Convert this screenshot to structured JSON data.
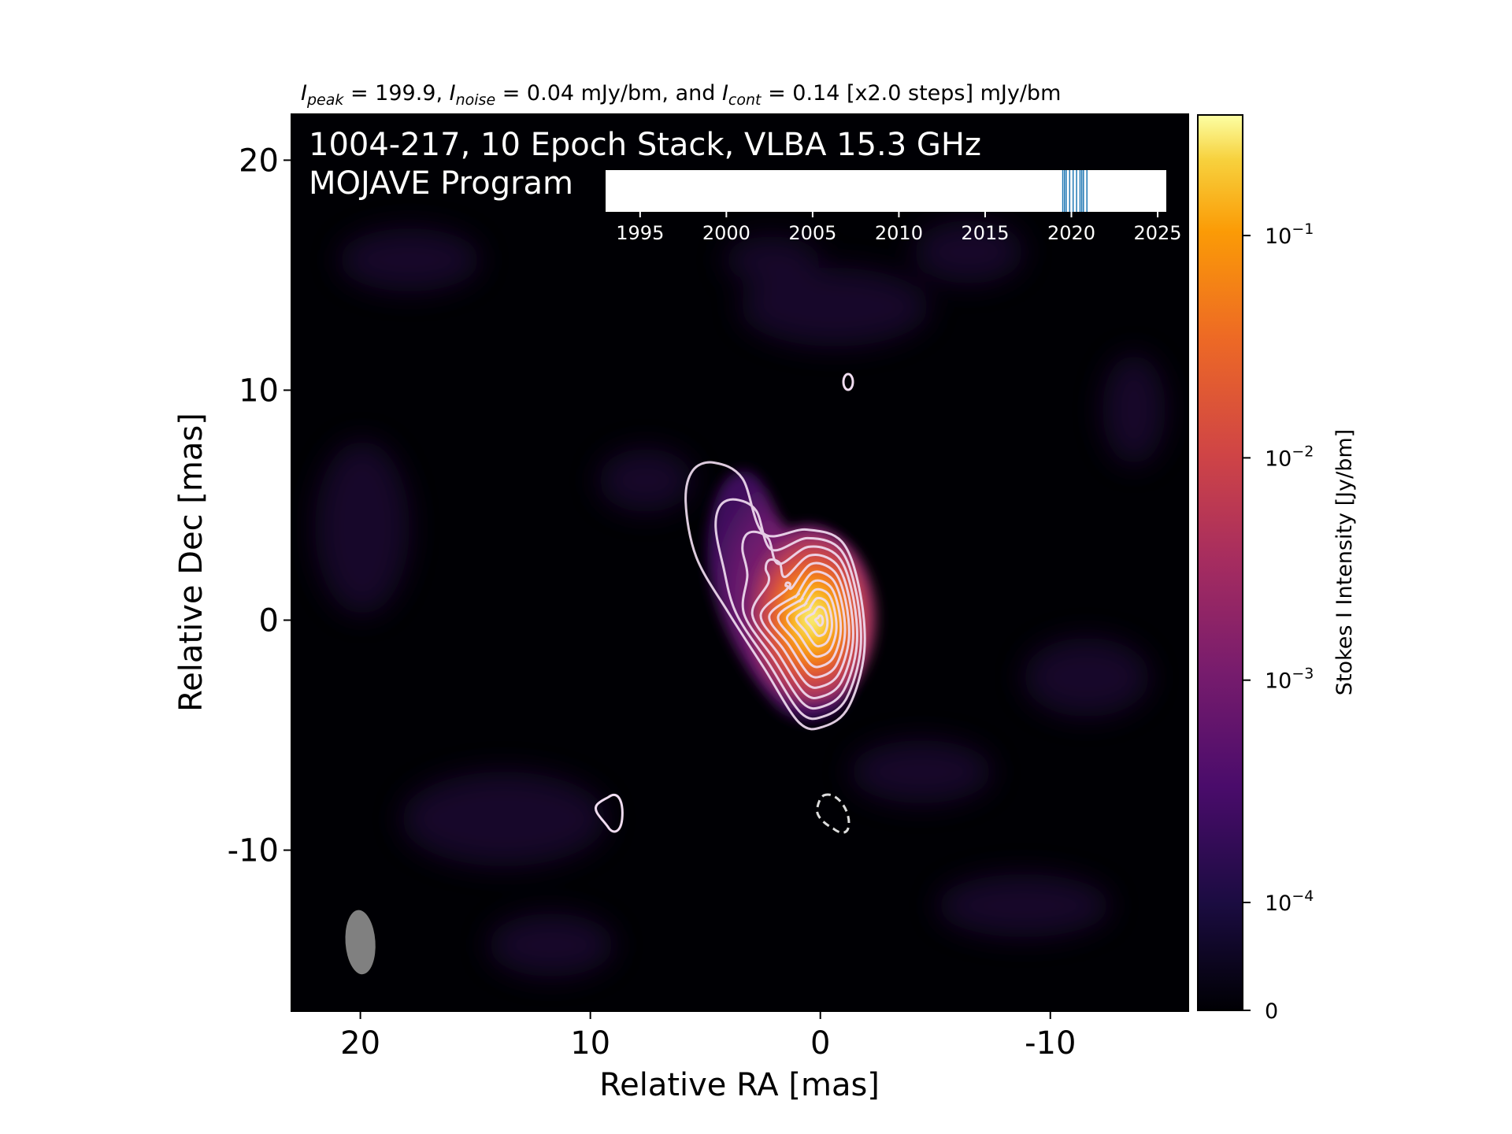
{
  "chart_data": {
    "type": "heatmap",
    "title_parts": {
      "i_peak_symbol": "I",
      "i_peak_sub": "peak",
      "i_peak_value": " = 199.9, ",
      "i_noise_symbol": "I",
      "i_noise_sub": "noise",
      "i_noise_value": " = 0.04 mJy/bm, and ",
      "i_cont_symbol": "I",
      "i_cont_sub": "cont",
      "i_cont_value": " = 0.14 [x2.0 steps] mJy/bm"
    },
    "annotation_line1": "1004-217, 10 Epoch Stack, VLBA 15.3 GHz",
    "annotation_line2": "MOJAVE Program",
    "xlabel": "Relative RA [mas]",
    "ylabel": "Relative Dec [mas]",
    "xlim": [
      23,
      -16
    ],
    "ylim": [
      -17,
      22
    ],
    "x_ticks": [
      20,
      10,
      0,
      -10
    ],
    "x_tick_labels": [
      "20",
      "10",
      "0",
      "-10"
    ],
    "y_ticks": [
      20,
      10,
      0,
      -10
    ],
    "y_tick_labels": [
      "20",
      "10",
      "0",
      "-10"
    ],
    "colormap": "inferno",
    "colorbar": {
      "label": "Stokes I Intensity [Jy/bm]",
      "scale": "log",
      "ticks": [
        {
          "value": 0.1,
          "base": "10",
          "exp": "−1"
        },
        {
          "value": 0.01,
          "base": "10",
          "exp": "−2"
        },
        {
          "value": 0.001,
          "base": "10",
          "exp": "−3"
        },
        {
          "value": 0.0001,
          "base": "10",
          "exp": "−4"
        },
        {
          "value": 0,
          "base": "0",
          "exp": ""
        }
      ]
    },
    "peak_position": [
      0,
      0
    ],
    "beam": {
      "center": [
        20,
        -14
      ],
      "major_mas": 2.8,
      "minor_mas": 1.3,
      "pa_deg": 4,
      "color": "#808080"
    },
    "contour_levels_mJy": [
      0.14,
      0.28,
      0.56,
      1.12,
      2.24,
      4.48,
      8.96,
      17.92,
      35.84,
      71.68,
      143.36
    ],
    "epoch_timeline": {
      "x_ticks": [
        1995,
        2000,
        2005,
        2010,
        2015,
        2020,
        2025
      ],
      "x_tick_labels": [
        "1995",
        "2000",
        "2005",
        "2010",
        "2015",
        "2020",
        "2025"
      ],
      "xlim": [
        1993,
        2025.5
      ],
      "epochs": [
        2019.5,
        2019.6,
        2019.7,
        2019.9,
        2020.1,
        2020.3,
        2020.5,
        2020.6,
        2020.7,
        2020.9
      ],
      "line_color": "#1f77b4"
    }
  }
}
